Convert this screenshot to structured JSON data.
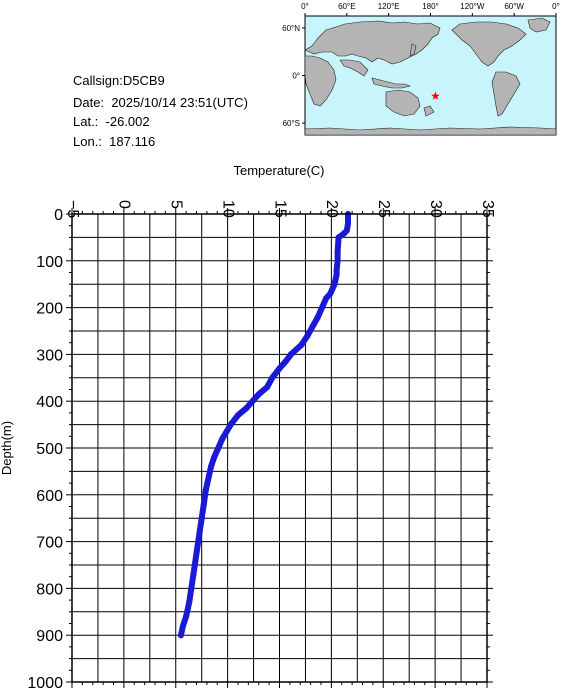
{
  "station": {
    "callsign_line": "Callsign:D5CB9",
    "date_label": "Date:",
    "date_value": "2025/10/14 23:51(UTC)",
    "lat_label": "Lat.:",
    "lat_value": "-26.002",
    "lon_label": "Lon.:",
    "lon_value": "187.116"
  },
  "map": {
    "lon_ticks": [
      "0°",
      "60°E",
      "120°E",
      "180°",
      "120°W",
      "60°W",
      "0°"
    ],
    "lat_ticks": [
      "60°N",
      "0°",
      "60°S"
    ],
    "ocean_color": "#c8f4fb",
    "land_color": "#b4b4b4",
    "marker": {
      "lon": 187.116,
      "lat": -26.002,
      "symbol": "star",
      "color": "#ff0000"
    }
  },
  "chart_data": {
    "type": "line",
    "xlabel": "Temperature(C)",
    "ylabel": "Depth(m)",
    "xlim": [
      -5,
      35
    ],
    "ylim": [
      0,
      1000
    ],
    "y_inverted": true,
    "x_axis_position": "top",
    "xticks": [
      -5,
      0,
      5,
      10,
      15,
      20,
      25,
      30,
      35
    ],
    "yticks": [
      0,
      100,
      200,
      300,
      400,
      500,
      600,
      700,
      800,
      900,
      1000
    ],
    "grid": true,
    "line_color": "#1a1ad6",
    "series": [
      {
        "x": [
          21.6,
          21.6,
          21.5,
          21.2,
          20.7,
          20.6,
          20.6,
          20.5,
          20.5,
          20.4,
          20.3,
          20.1,
          19.9,
          19.5,
          19.1,
          18.7,
          18.2,
          17.7,
          17.1,
          16.6,
          16.1,
          15.6,
          15.0,
          14.3,
          13.8,
          13.0,
          12.4,
          11.8,
          11.0,
          10.3,
          9.9,
          9.5,
          9.1,
          8.7,
          8.4,
          8.2,
          7.9,
          7.7,
          7.5,
          7.3,
          7.1,
          6.9,
          6.7,
          6.5,
          6.3,
          6.0,
          5.7,
          5.5
        ],
        "y": [
          0,
          20,
          35,
          42,
          50,
          80,
          100,
          120,
          130,
          140,
          150,
          160,
          170,
          180,
          200,
          220,
          240,
          260,
          280,
          290,
          300,
          315,
          330,
          350,
          370,
          385,
          400,
          415,
          430,
          450,
          465,
          480,
          500,
          520,
          540,
          560,
          590,
          620,
          650,
          680,
          710,
          740,
          770,
          800,
          830,
          860,
          880,
          900
        ]
      }
    ]
  }
}
